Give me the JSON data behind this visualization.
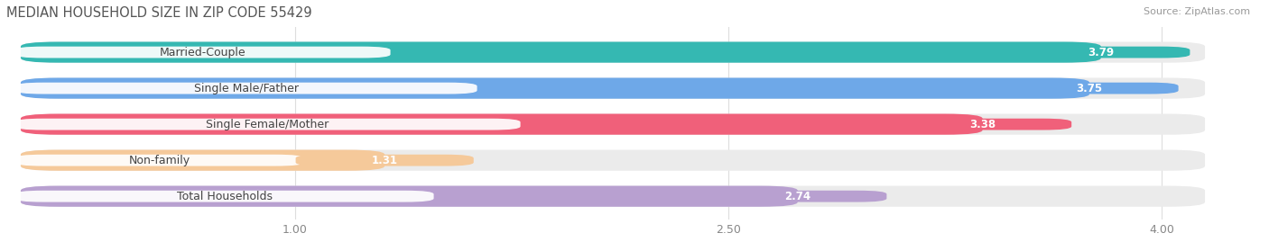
{
  "title": "MEDIAN HOUSEHOLD SIZE IN ZIP CODE 55429",
  "source": "Source: ZipAtlas.com",
  "categories": [
    "Married-Couple",
    "Single Male/Father",
    "Single Female/Mother",
    "Non-family",
    "Total Households"
  ],
  "values": [
    3.79,
    3.75,
    3.38,
    1.31,
    2.74
  ],
  "bar_colors": [
    "#35b8b2",
    "#6ea8e8",
    "#f0607a",
    "#f5c99a",
    "#b8a0d0"
  ],
  "xlim_left": 0.0,
  "xlim_right": 4.35,
  "data_xstart": 0.05,
  "data_xend": 4.15,
  "xticks": [
    1.0,
    2.5,
    4.0
  ],
  "xtick_labels": [
    "1.00",
    "2.50",
    "4.00"
  ],
  "title_fontsize": 10.5,
  "source_fontsize": 8,
  "bar_label_fontsize": 8.5,
  "category_fontsize": 9,
  "background_color": "#ffffff",
  "bar_background_color": "#ebebeb",
  "bar_height": 0.58,
  "bar_gap": 0.42
}
